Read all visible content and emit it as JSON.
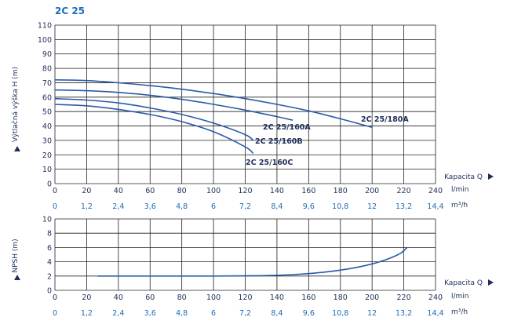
{
  "colors": {
    "grid": "#222222",
    "curve": "#2a5aa8",
    "title": "#1c6bb6",
    "text": "#1f2f5a"
  },
  "chart_data": [
    {
      "type": "line",
      "title": "2C 25",
      "ylabel": "Výtlačná výška H (m)",
      "xlabel": "Kapacita Q",
      "x_unit": "l/min",
      "x2_unit": "m³/h",
      "xlim": [
        0,
        240
      ],
      "ylim": [
        0,
        110
      ],
      "x_ticks": [
        "0",
        "20",
        "40",
        "60",
        "80",
        "100",
        "120",
        "140",
        "160",
        "180",
        "200",
        "220",
        "240"
      ],
      "x2_ticks": [
        "0",
        "1,2",
        "2,4",
        "3,6",
        "4,8",
        "6",
        "7,2",
        "8,4",
        "9,6",
        "10,8",
        "12",
        "13,2",
        "14,4"
      ],
      "y_ticks": [
        "0",
        "10",
        "20",
        "30",
        "40",
        "50",
        "60",
        "70",
        "80",
        "90",
        "100",
        "110"
      ],
      "grid": true,
      "series": [
        {
          "name": "2C 25/180A",
          "x": [
            0,
            20,
            40,
            60,
            80,
            100,
            120,
            140,
            160,
            180,
            200
          ],
          "y": [
            72,
            71.5,
            70,
            68,
            65.5,
            62.5,
            59,
            55,
            50.5,
            45,
            39
          ]
        },
        {
          "name": "2C 25/160A",
          "x": [
            0,
            20,
            40,
            60,
            80,
            100,
            120,
            140,
            150
          ],
          "y": [
            65,
            64.5,
            63.3,
            61.3,
            58.5,
            55,
            51,
            46.5,
            44
          ]
        },
        {
          "name": "2C 25/160B",
          "x": [
            0,
            20,
            40,
            60,
            80,
            100,
            120,
            125
          ],
          "y": [
            59,
            58,
            56,
            52.5,
            48,
            42,
            34,
            30
          ]
        },
        {
          "name": "2C 25/160C",
          "x": [
            0,
            20,
            40,
            60,
            80,
            100,
            120,
            125
          ],
          "y": [
            55,
            54,
            51.5,
            48,
            43,
            36,
            25.5,
            21
          ]
        }
      ]
    },
    {
      "type": "line",
      "title": "",
      "ylabel": "NPSH (m)",
      "xlabel": "Kapacita Q",
      "x_unit": "l/min",
      "x2_unit": "m³/h",
      "xlim": [
        0,
        240
      ],
      "ylim": [
        0,
        10
      ],
      "x_ticks": [
        "0",
        "20",
        "40",
        "60",
        "80",
        "100",
        "120",
        "140",
        "160",
        "180",
        "200",
        "220",
        "240"
      ],
      "x2_ticks": [
        "0",
        "1,2",
        "2,4",
        "3,6",
        "4,8",
        "6",
        "7,2",
        "8,4",
        "9,6",
        "10,8",
        "12",
        "13,2",
        "14,4"
      ],
      "y_ticks": [
        "0",
        "2",
        "4",
        "6",
        "8",
        "10"
      ],
      "grid": true,
      "series": [
        {
          "name": "",
          "x": [
            27,
            60,
            100,
            130,
            150,
            170,
            185,
            200,
            210,
            218,
            222
          ],
          "y": [
            2,
            2,
            2,
            2.05,
            2.2,
            2.55,
            3,
            3.7,
            4.4,
            5.2,
            6
          ]
        }
      ]
    }
  ]
}
